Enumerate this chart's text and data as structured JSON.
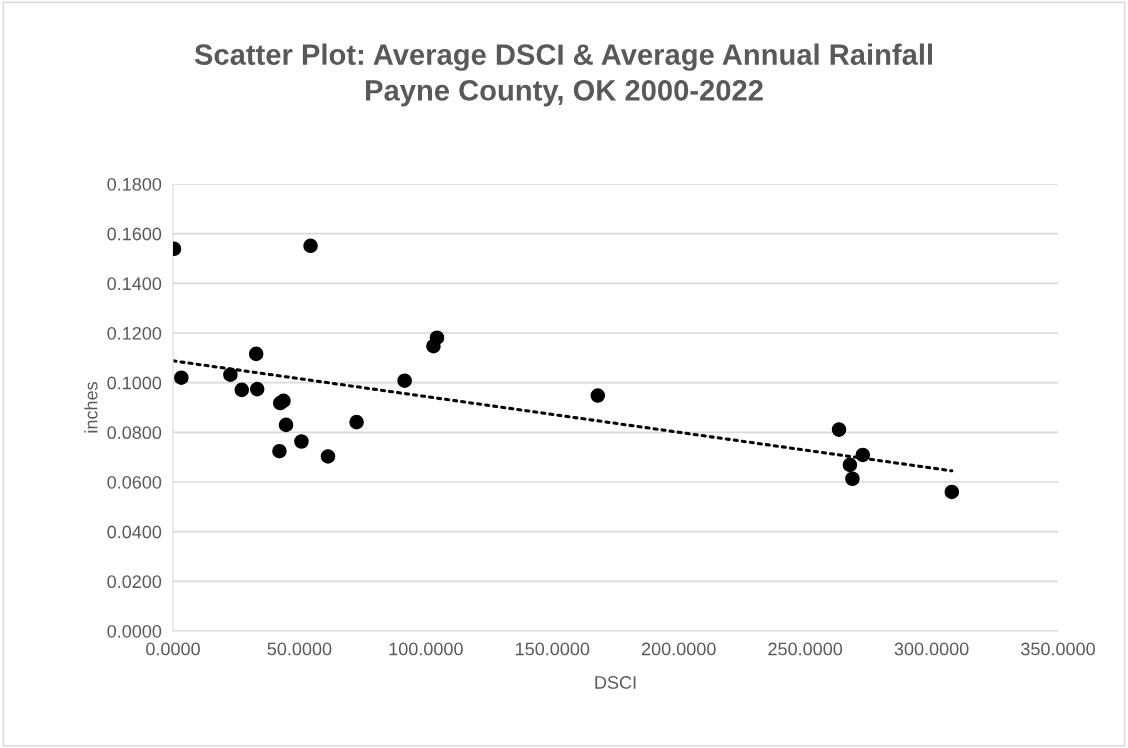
{
  "chart_data": {
    "type": "scatter",
    "title": "Scatter Plot: Average DSCI & Average Annual Rainfall\nPayne County, OK 2000-2022",
    "xlabel": "DSCI",
    "ylabel": "inches",
    "xlim": [
      0,
      350
    ],
    "xticks": [
      {
        "value": 0,
        "label": "0.0000"
      },
      {
        "value": 50,
        "label": "50.0000"
      },
      {
        "value": 100,
        "label": "100.0000"
      },
      {
        "value": 150,
        "label": "150.0000"
      },
      {
        "value": 200,
        "label": "200.0000"
      },
      {
        "value": 250,
        "label": "250.0000"
      },
      {
        "value": 300,
        "label": "300.0000"
      },
      {
        "value": 350,
        "label": "350.0000"
      }
    ],
    "ylim": [
      0,
      0.18
    ],
    "yticks": [
      {
        "value": 0,
        "label": "0.0000"
      },
      {
        "value": 0.02,
        "label": "0.0200"
      },
      {
        "value": 0.04,
        "label": "0.0400"
      },
      {
        "value": 0.06,
        "label": "0.0600"
      },
      {
        "value": 0.08,
        "label": "0.0800"
      },
      {
        "value": 0.1,
        "label": "0.1000"
      },
      {
        "value": 0.12,
        "label": "0.1200"
      },
      {
        "value": 0.14,
        "label": "0.1400"
      },
      {
        "value": 0.16,
        "label": "0.1600"
      },
      {
        "value": 0.18,
        "label": "0.1800"
      }
    ],
    "grid": "y",
    "marker": "circle",
    "series": [
      {
        "color": "#000000",
        "x": [
          0.4,
          54.4,
          3.3,
          22.7,
          32.9,
          27.2,
          33.3,
          42.4,
          43.7,
          44.7,
          50.8,
          42.1,
          61.3,
          72.6,
          91.6,
          103.0,
          104.4,
          168.0,
          263.4,
          272.8,
          267.7,
          268.7,
          308.0
        ],
        "values": [
          0.1539,
          0.1551,
          0.102,
          0.1032,
          0.1116,
          0.0971,
          0.0974,
          0.0918,
          0.0927,
          0.083,
          0.0763,
          0.0724,
          0.0703,
          0.0841,
          0.1008,
          0.1147,
          0.1181,
          0.0948,
          0.0811,
          0.0709,
          0.0669,
          0.0613,
          0.056
        ]
      },
      {
        "type": "line",
        "line_style": "dotted",
        "marker": "none",
        "color": "#000000",
        "x": [
          0,
          308
        ],
        "values": [
          0.1088,
          0.0645
        ]
      }
    ]
  }
}
